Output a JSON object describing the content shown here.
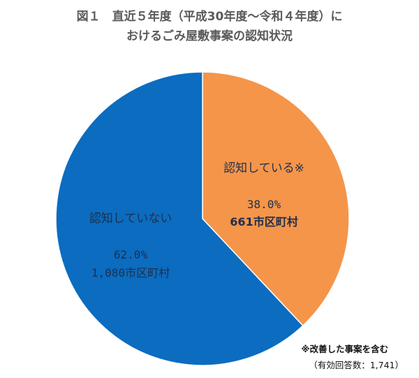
{
  "chart_data": {
    "type": "pie",
    "title_line1": "図１　直近５年度（平成30年度〜令和４年度）に",
    "title_line2": "おけるごみ屋敷事案の認知状況",
    "slices": [
      {
        "label": "認知している※",
        "percent": 38.0,
        "percent_text": "38.0%",
        "count_text": "661市区町村",
        "color": "#f5954a"
      },
      {
        "label": "認知していない",
        "percent": 62.0,
        "percent_text": "62.0%",
        "count_text": "1,080市区町村",
        "color": "#0b6cc0"
      }
    ],
    "start_angle_deg": 0,
    "direction": "clockwise",
    "footnote": "※改善した事案を含む",
    "respondents": "（有効回答数：1,741）"
  }
}
